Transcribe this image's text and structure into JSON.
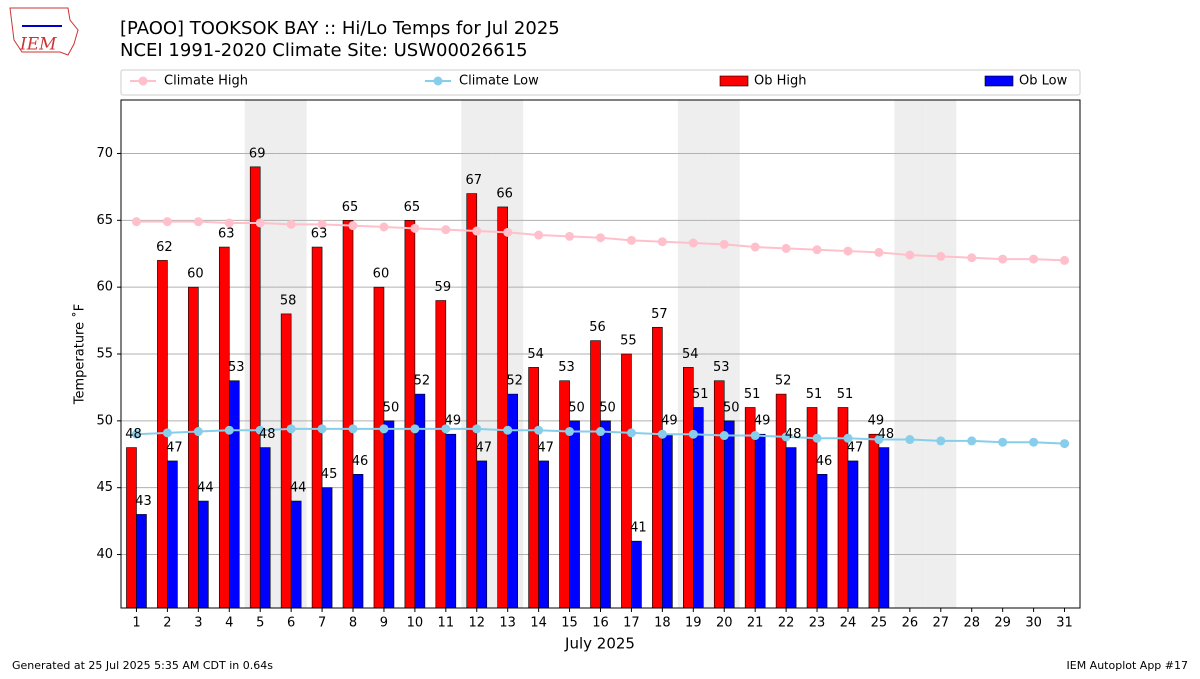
{
  "chart_data": {
    "type": "bar",
    "title": "[PAOO] TOOKSOK BAY :: Hi/Lo Temps for Jul 2025",
    "subtitle": "NCEI 1991-2020 Climate Site: USW00026615",
    "logo_text": "IEM",
    "xlabel": "July 2025",
    "ylabel": "Temperature ˚F",
    "footer_left": "Generated at 25 Jul 2025 5:35 AM CDT in 0.64s",
    "footer_right": "IEM Autoplot App #17",
    "x": [
      1,
      2,
      3,
      4,
      5,
      6,
      7,
      8,
      9,
      10,
      11,
      12,
      13,
      14,
      15,
      16,
      17,
      18,
      19,
      20,
      21,
      22,
      23,
      24,
      25,
      26,
      27,
      28,
      29,
      30,
      31
    ],
    "xlim": [
      0.5,
      31.5
    ],
    "xticks": [
      1,
      2,
      3,
      4,
      5,
      6,
      7,
      8,
      9,
      10,
      11,
      12,
      13,
      14,
      15,
      16,
      17,
      18,
      19,
      20,
      21,
      22,
      23,
      24,
      25,
      26,
      27,
      28,
      29,
      30,
      31
    ],
    "ylim": [
      36,
      74
    ],
    "yticks": [
      40,
      45,
      50,
      55,
      60,
      65,
      70
    ],
    "grid": true,
    "shaded_days": [
      5,
      6,
      12,
      13,
      19,
      20,
      26,
      27
    ],
    "series": [
      {
        "name": "Climate High",
        "kind": "line",
        "color": "#ffc0cb",
        "values": [
          64.9,
          64.9,
          64.9,
          64.8,
          64.8,
          64.7,
          64.7,
          64.6,
          64.5,
          64.4,
          64.3,
          64.2,
          64.1,
          63.9,
          63.8,
          63.7,
          63.5,
          63.4,
          63.3,
          63.2,
          63.0,
          62.9,
          62.8,
          62.7,
          62.6,
          62.4,
          62.3,
          62.2,
          62.1,
          62.1,
          62.0
        ]
      },
      {
        "name": "Climate Low",
        "kind": "line",
        "color": "#87ceeb",
        "values": [
          49.0,
          49.1,
          49.2,
          49.3,
          49.3,
          49.4,
          49.4,
          49.4,
          49.4,
          49.4,
          49.4,
          49.4,
          49.3,
          49.3,
          49.2,
          49.2,
          49.1,
          49.0,
          49.0,
          48.9,
          48.9,
          48.8,
          48.7,
          48.7,
          48.6,
          48.6,
          48.5,
          48.5,
          48.4,
          48.4,
          48.3
        ]
      },
      {
        "name": "Ob High",
        "kind": "bar",
        "color": "#ff0000",
        "values": [
          48,
          62,
          60,
          63,
          69,
          58,
          63,
          65,
          60,
          65,
          59,
          67,
          66,
          54,
          53,
          56,
          55,
          57,
          54,
          53,
          51,
          52,
          51,
          51,
          49,
          null,
          null,
          null,
          null,
          null,
          null
        ]
      },
      {
        "name": "Ob Low",
        "kind": "bar",
        "color": "#0000ff",
        "values": [
          43,
          47,
          44,
          53,
          48,
          44,
          45,
          46,
          50,
          52,
          49,
          47,
          52,
          47,
          50,
          50,
          41,
          49,
          51,
          50,
          49,
          48,
          46,
          47,
          48,
          null,
          null,
          null,
          null,
          null,
          null
        ]
      }
    ]
  }
}
